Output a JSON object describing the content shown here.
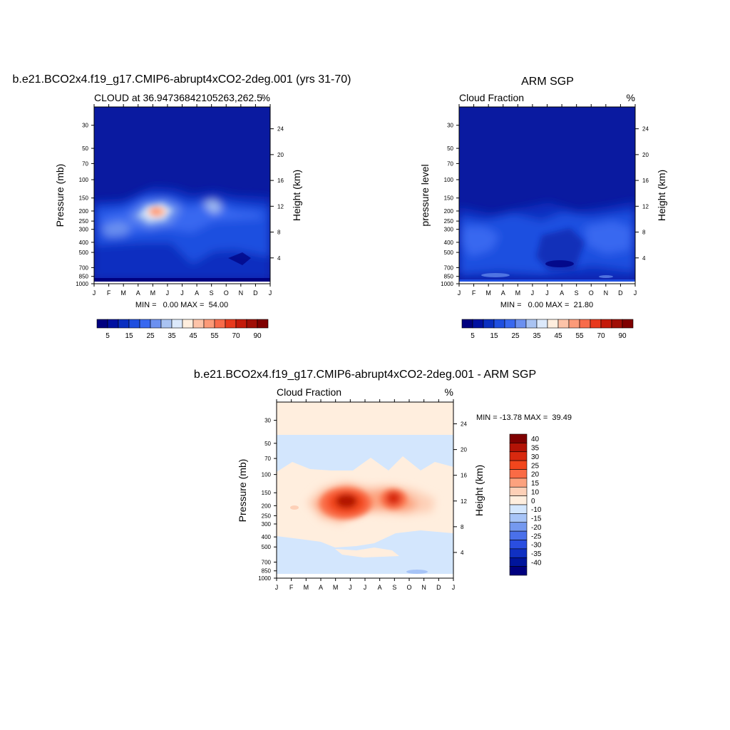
{
  "chart_data": [
    {
      "type": "heatmap",
      "title": "b.e21.BCO2x4.f19_g17.CMIP6-abrupt4xCO2-2deg.001 (yrs 31-70)",
      "left_label": "CLOUD at 36.94736842105263,262.5",
      "right_label": "%",
      "xlabel": "",
      "ylabel": "Pressure (mb)",
      "ylabel_right": "Height (km)",
      "x_ticks": [
        "J",
        "F",
        "M",
        "A",
        "M",
        "J",
        "J",
        "A",
        "S",
        "O",
        "N",
        "D",
        "J"
      ],
      "y_ticks": [
        "30",
        "50",
        "70",
        "100",
        "150",
        "200",
        "250",
        "300",
        "400",
        "500",
        "700",
        "850",
        "1000"
      ],
      "y_ticks_right": [
        "24",
        "20",
        "16",
        "12",
        "8",
        "4"
      ],
      "ylim": [
        1000,
        20
      ],
      "summary": "MIN =   0.00 MAX =  54.00",
      "colorbar_labels": [
        "5",
        "15",
        "25",
        "35",
        "45",
        "55",
        "70",
        "90"
      ],
      "peak_value": 54.0,
      "peak_location": {
        "month": "May",
        "pressure_mb": 200
      }
    },
    {
      "type": "heatmap",
      "title": "ARM SGP",
      "left_label": "Cloud Fraction",
      "right_label": "%",
      "xlabel": "",
      "ylabel": "pressure level",
      "ylabel_right": "Height (km)",
      "x_ticks": [
        "J",
        "F",
        "M",
        "A",
        "M",
        "J",
        "J",
        "A",
        "S",
        "O",
        "N",
        "D",
        "J"
      ],
      "y_ticks": [
        "30",
        "50",
        "70",
        "100",
        "150",
        "200",
        "250",
        "300",
        "400",
        "500",
        "700",
        "850",
        "1000"
      ],
      "y_ticks_right": [
        "24",
        "20",
        "16",
        "12",
        "8",
        "4"
      ],
      "ylim": [
        1000,
        20
      ],
      "summary": "MIN =   0.00 MAX =  21.80",
      "colorbar_labels": [
        "5",
        "15",
        "25",
        "35",
        "45",
        "55",
        "70",
        "90"
      ],
      "peak_value": 21.8
    },
    {
      "type": "heatmap",
      "title": "b.e21.BCO2x4.f19_g17.CMIP6-abrupt4xCO2-2deg.001 - ARM SGP",
      "left_label": "Cloud Fraction",
      "right_label": "%",
      "xlabel": "",
      "ylabel": "Pressure (mb)",
      "ylabel_right": "Height (km)",
      "x_ticks": [
        "J",
        "F",
        "M",
        "A",
        "M",
        "J",
        "J",
        "A",
        "S",
        "O",
        "N",
        "D",
        "J"
      ],
      "y_ticks": [
        "30",
        "50",
        "70",
        "100",
        "150",
        "200",
        "250",
        "300",
        "400",
        "500",
        "700",
        "850",
        "1000"
      ],
      "y_ticks_right": [
        "24",
        "20",
        "16",
        "12",
        "8",
        "4"
      ],
      "ylim": [
        1000,
        20
      ],
      "summary": "MIN = -13.78 MAX =  39.49",
      "colorbar_labels": [
        "40",
        "35",
        "30",
        "25",
        "20",
        "15",
        "10",
        "0",
        "-10",
        "-15",
        "-20",
        "-25",
        "-30",
        "-35",
        "-40"
      ],
      "peak_value": 39.49,
      "min_value": -13.78
    }
  ],
  "colors": {
    "seq": [
      "#00007f",
      "#0010a0",
      "#0a2fc0",
      "#1f4fe0",
      "#3868f0",
      "#6b90f0",
      "#a9c3f2",
      "#dce9fb",
      "#ffeede",
      "#fdc3a8",
      "#fc9a78",
      "#f86b4a",
      "#e8391c",
      "#c41a0a",
      "#a00e06",
      "#7f0000"
    ],
    "diff": [
      "#7f0000",
      "#b31306",
      "#d8290f",
      "#f2461d",
      "#fa6b45",
      "#fca27e",
      "#fdd0b7",
      "#ffeede",
      "#d3e6fd",
      "#a7c4f7",
      "#7599ef",
      "#4a70ea",
      "#2a4ee0",
      "#1030c2",
      "#00159c",
      "#00007f"
    ],
    "background_dark": "#0a1aa0"
  }
}
